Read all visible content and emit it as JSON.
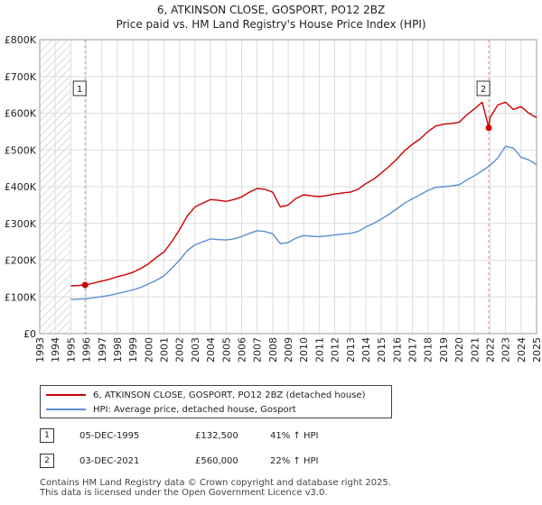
{
  "title_line1": "6, ATKINSON CLOSE, GOSPORT, PO12 2BZ",
  "title_line2": "Price paid vs. HM Land Registry's House Price Index (HPI)",
  "chart_data": {
    "type": "line",
    "xlim": [
      1993,
      2025
    ],
    "ylim": [
      0,
      800000
    ],
    "ytick_values": [
      0,
      100000,
      200000,
      300000,
      400000,
      500000,
      600000,
      700000,
      800000
    ],
    "ytick_labels": [
      "£0",
      "£100K",
      "£200K",
      "£300K",
      "£400K",
      "£500K",
      "£600K",
      "£700K",
      "£800K"
    ],
    "xtick_values": [
      1993,
      1994,
      1995,
      1996,
      1997,
      1998,
      1999,
      2000,
      2001,
      2002,
      2003,
      2004,
      2005,
      2006,
      2007,
      2008,
      2009,
      2010,
      2011,
      2012,
      2013,
      2014,
      2015,
      2016,
      2017,
      2018,
      2019,
      2020,
      2021,
      2022,
      2023,
      2024,
      2025
    ],
    "xtick_labels": [
      "1993",
      "1994",
      "1995",
      "1996",
      "1997",
      "1998",
      "1999",
      "2000",
      "2001",
      "2002",
      "2003",
      "2004",
      "2005",
      "2006",
      "2007",
      "2008",
      "2009",
      "2010",
      "2011",
      "2012",
      "2013",
      "2014",
      "2015",
      "2016",
      "2017",
      "2018",
      "2019",
      "2020",
      "2021",
      "2022",
      "2023",
      "2024",
      "2025"
    ],
    "hatch_range": [
      1993,
      1995
    ],
    "grid": true,
    "colors": {
      "property": "#cc0000",
      "hpi": "#5b8ed0",
      "vline": "#e88888",
      "grid": "#dddddd"
    },
    "series": [
      {
        "name": "6, ATKINSON CLOSE, GOSPORT, PO12 2BZ (detached house)",
        "key": "property",
        "x": [
          1995.0,
          1995.5,
          1995.92,
          1996.5,
          1997.0,
          1997.5,
          1998.0,
          1998.5,
          1999.0,
          1999.5,
          2000.0,
          2000.5,
          2001.0,
          2001.5,
          2002.0,
          2002.5,
          2003.0,
          2003.5,
          2004.0,
          2004.5,
          2005.0,
          2005.5,
          2006.0,
          2006.5,
          2007.0,
          2007.5,
          2008.0,
          2008.5,
          2009.0,
          2009.5,
          2010.0,
          2010.5,
          2011.0,
          2011.5,
          2012.0,
          2012.5,
          2013.0,
          2013.5,
          2014.0,
          2014.5,
          2015.0,
          2015.5,
          2016.0,
          2016.5,
          2017.0,
          2017.5,
          2018.0,
          2018.5,
          2019.0,
          2019.5,
          2020.0,
          2020.5,
          2021.0,
          2021.5,
          2021.92,
          2022.0,
          2022.5,
          2023.0,
          2023.5,
          2024.0,
          2024.5,
          2025.0
        ],
        "values": [
          130000,
          131000,
          132500,
          138000,
          143000,
          148000,
          155000,
          160000,
          167000,
          177000,
          190000,
          207000,
          222000,
          250000,
          283000,
          320000,
          345000,
          355000,
          365000,
          363000,
          360000,
          365000,
          372000,
          385000,
          395000,
          393000,
          385000,
          345000,
          350000,
          368000,
          378000,
          375000,
          373000,
          376000,
          380000,
          383000,
          385000,
          393000,
          408000,
          420000,
          437000,
          455000,
          475000,
          498000,
          515000,
          530000,
          550000,
          565000,
          570000,
          572000,
          575000,
          595000,
          612000,
          630000,
          560000,
          588000,
          622000,
          630000,
          610000,
          618000,
          600000,
          588000
        ]
      },
      {
        "name": "HPI: Average price, detached house, Gosport",
        "key": "hpi",
        "x": [
          1995.0,
          1995.5,
          1996.0,
          1996.5,
          1997.0,
          1997.5,
          1998.0,
          1998.5,
          1999.0,
          1999.5,
          2000.0,
          2000.5,
          2001.0,
          2001.5,
          2002.0,
          2002.5,
          2003.0,
          2003.5,
          2004.0,
          2004.5,
          2005.0,
          2005.5,
          2006.0,
          2006.5,
          2007.0,
          2007.5,
          2008.0,
          2008.5,
          2009.0,
          2009.5,
          2010.0,
          2010.5,
          2011.0,
          2011.5,
          2012.0,
          2012.5,
          2013.0,
          2013.5,
          2014.0,
          2014.5,
          2015.0,
          2015.5,
          2016.0,
          2016.5,
          2017.0,
          2017.5,
          2018.0,
          2018.5,
          2019.0,
          2019.5,
          2020.0,
          2020.5,
          2021.0,
          2021.5,
          2022.0,
          2022.5,
          2023.0,
          2023.5,
          2024.0,
          2024.5,
          2025.0
        ],
        "values": [
          93000,
          94000,
          95000,
          98000,
          101000,
          104000,
          109000,
          114000,
          119000,
          126000,
          135000,
          145000,
          157000,
          178000,
          200000,
          226000,
          242000,
          250000,
          258000,
          256000,
          255000,
          258000,
          264000,
          273000,
          280000,
          278000,
          272000,
          245000,
          248000,
          260000,
          267000,
          265000,
          264000,
          266000,
          269000,
          271000,
          273000,
          278000,
          290000,
          300000,
          312000,
          325000,
          340000,
          355000,
          367000,
          378000,
          390000,
          398000,
          400000,
          402000,
          405000,
          418000,
          430000,
          443000,
          458000,
          478000,
          510000,
          505000,
          480000,
          473000,
          460000
        ]
      }
    ],
    "sales": [
      {
        "label": "1",
        "x": 1995.92,
        "value": 132500
      },
      {
        "label": "2",
        "x": 2021.92,
        "value": 560000
      }
    ]
  },
  "legend": {
    "property": "6, ATKINSON CLOSE, GOSPORT, PO12 2BZ (detached house)",
    "hpi": "HPI: Average price, detached house, Gosport"
  },
  "transactions": [
    {
      "num": "1",
      "date": "05-DEC-1995",
      "price": "£132,500",
      "hpi": "41% ↑ HPI"
    },
    {
      "num": "2",
      "date": "03-DEC-2021",
      "price": "£560,000",
      "hpi": "22% ↑ HPI"
    }
  ],
  "footer": {
    "line1": "Contains HM Land Registry data © Crown copyright and database right 2025.",
    "line2": "This data is licensed under the Open Government Licence v3.0."
  }
}
